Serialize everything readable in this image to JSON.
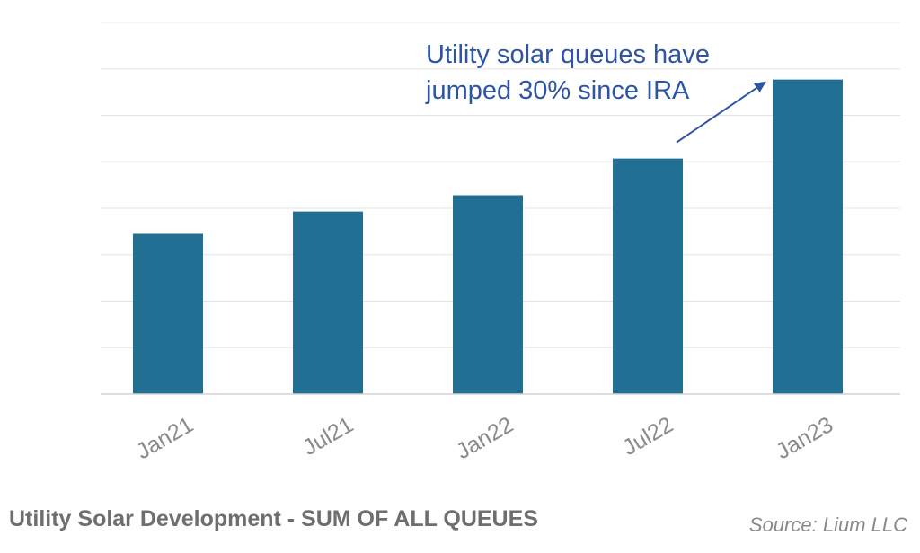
{
  "chart_data": {
    "type": "bar",
    "title": "Utility Solar Development - SUM OF ALL QUEUES",
    "source": "Source: Lium LLC",
    "categories": [
      "Jan21",
      "Jul21",
      "Jan22",
      "Jul22",
      "Jan23"
    ],
    "values": [
      3.45,
      3.93,
      4.28,
      5.07,
      6.77
    ],
    "ylim": [
      0,
      8
    ],
    "y_ticks_visible": false,
    "grid": true,
    "annotation": {
      "lines": [
        "Utility solar queues have",
        "jumped 30% since IRA"
      ],
      "points_to": "Jan23"
    },
    "colors": {
      "bar": "#217093",
      "grid": "#e3e3e3",
      "annotation": "#2e55a4",
      "tick_label": "#8a8a8a",
      "title": "#6e6e6e"
    }
  }
}
